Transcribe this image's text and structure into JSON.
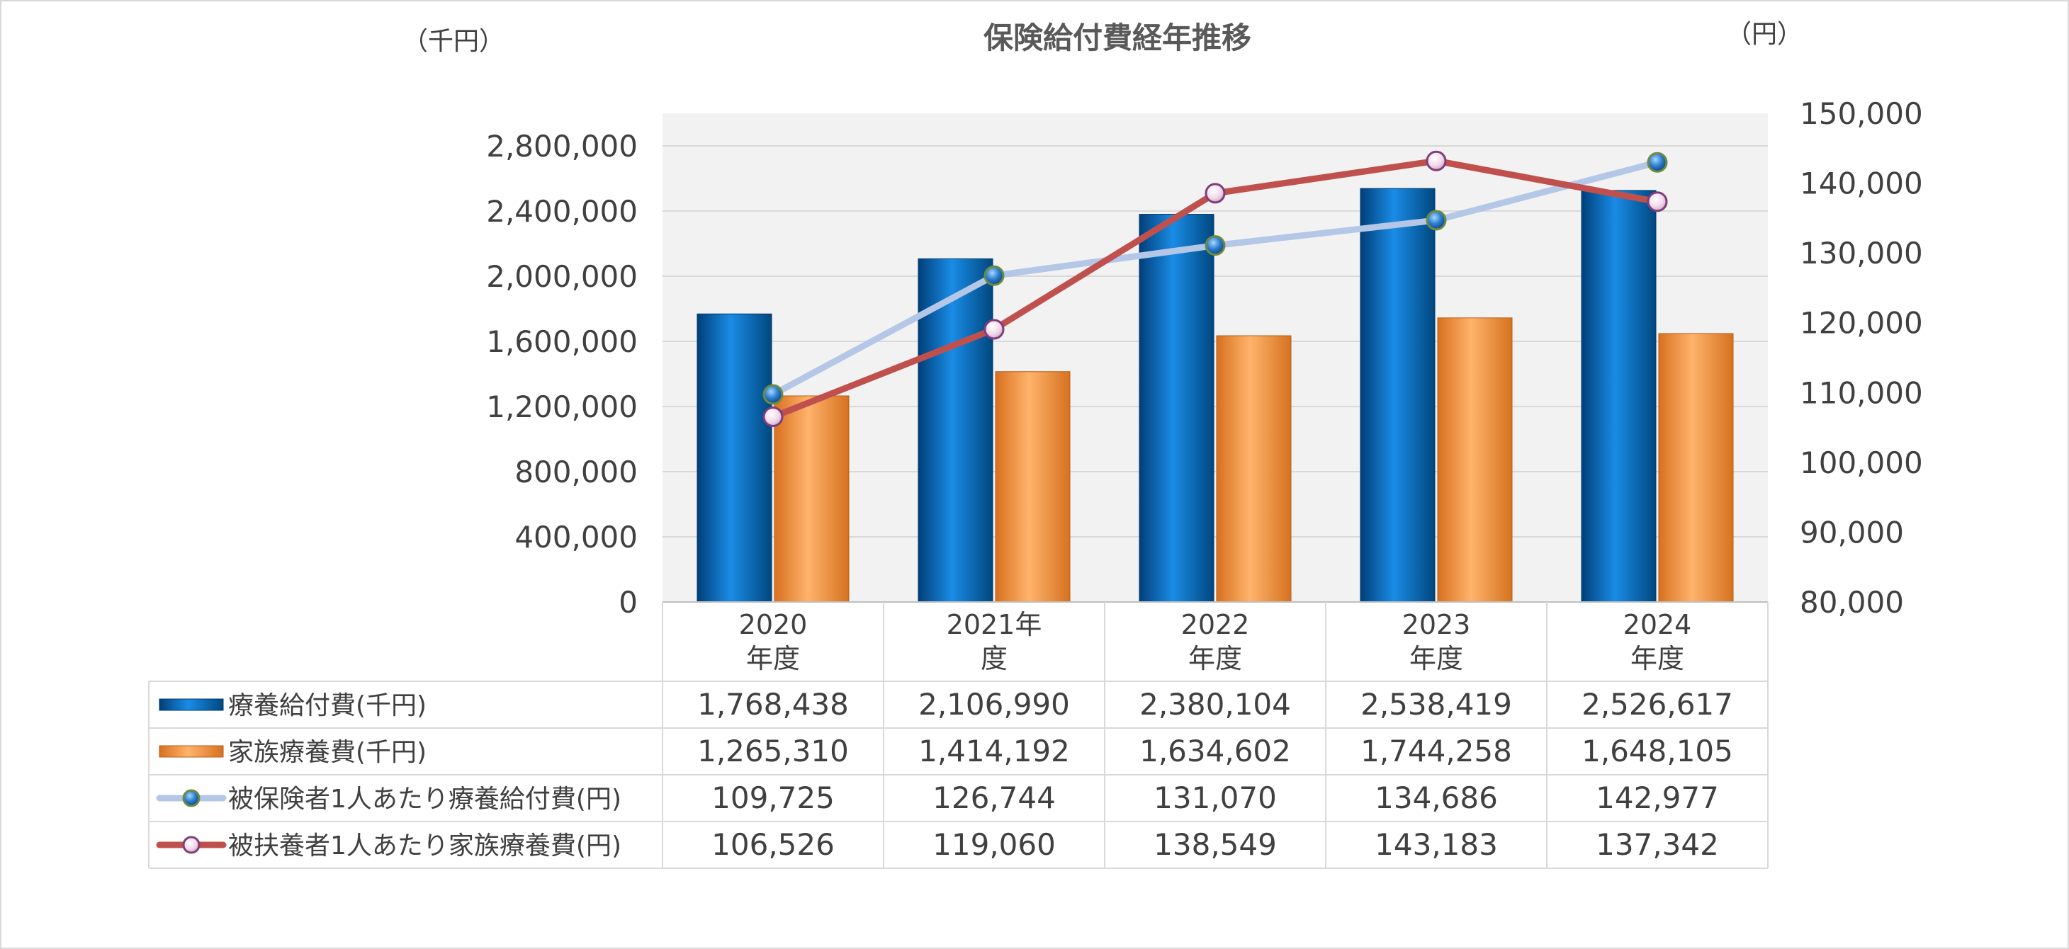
{
  "chart_data": {
    "type": "bar",
    "title": "保険給付費経年推移",
    "left_unit": "（千円）",
    "right_unit": "（円）",
    "categories": [
      {
        "line1": "2020",
        "line2": "年度"
      },
      {
        "line1": "2021年",
        "line2": "度"
      },
      {
        "line1": "2022",
        "line2": "年度"
      },
      {
        "line1": "2023",
        "line2": "年度"
      },
      {
        "line1": "2024",
        "line2": "年度"
      }
    ],
    "y_left": {
      "min": 0,
      "max": 3000000,
      "ticks": [
        0,
        400000,
        800000,
        1200000,
        1600000,
        2000000,
        2400000,
        2800000
      ]
    },
    "y_right": {
      "min": 80000,
      "max": 150000,
      "ticks": [
        80000,
        90000,
        100000,
        110000,
        120000,
        130000,
        140000,
        150000
      ]
    },
    "grid": true,
    "legend": "data-table",
    "series": [
      {
        "name": "療養給付費(千円)",
        "kind": "bar",
        "axis": "left",
        "color": "#0070C0",
        "values": [
          1768438,
          2106990,
          2380104,
          2538419,
          2526617
        ]
      },
      {
        "name": "家族療養費(千円)",
        "kind": "bar",
        "axis": "left",
        "color": "#F79646",
        "values": [
          1265310,
          1414192,
          1634602,
          1744258,
          1648105
        ]
      },
      {
        "name": "被保険者1人あたり療養給付費(円)",
        "kind": "line",
        "axis": "right",
        "color": "#B4C7E7",
        "values": [
          109725,
          126744,
          131070,
          134686,
          142977
        ]
      },
      {
        "name": "被扶養者1人あたり家族療養費(円)",
        "kind": "line",
        "axis": "right",
        "color": "#C0504D",
        "values": [
          106526,
          119060,
          138549,
          143183,
          137342
        ]
      }
    ]
  }
}
